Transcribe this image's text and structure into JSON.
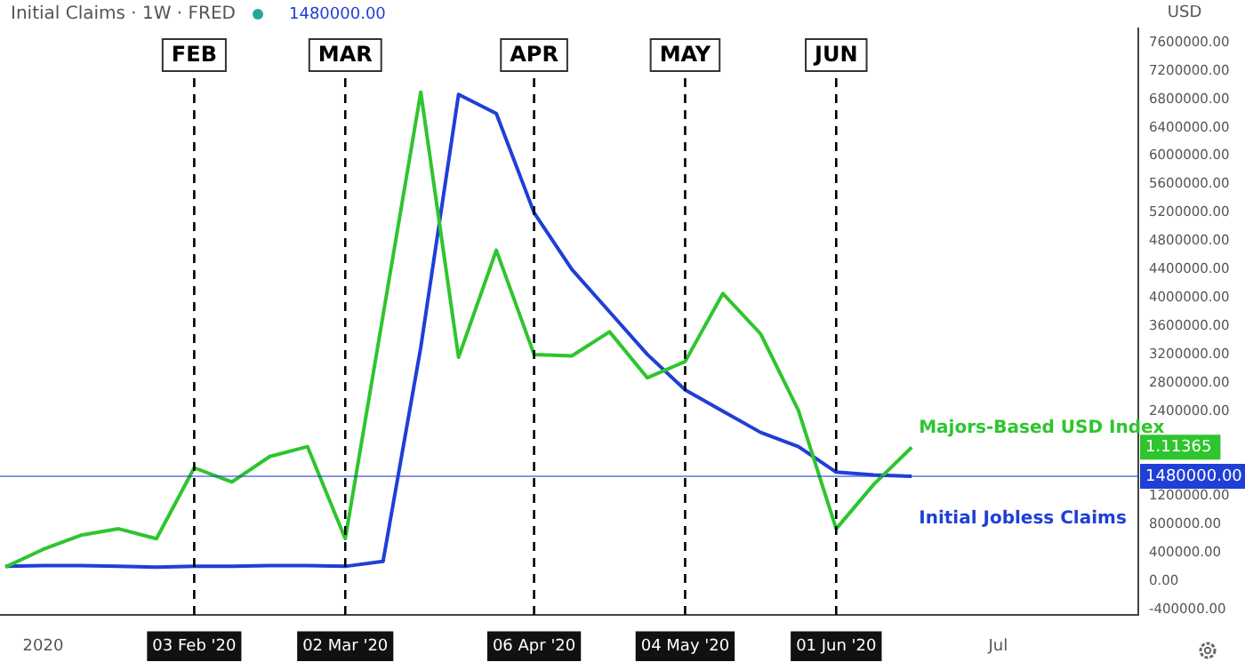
{
  "chart_data": {
    "type": "line",
    "title": "Initial Claims · 1W · FRED",
    "subtitle": "1480000.00",
    "ylabel": "USD",
    "x": [
      "2019-12-30",
      "2020-01-06",
      "2020-01-13",
      "2020-01-20",
      "2020-01-27",
      "2020-02-03",
      "2020-02-10",
      "2020-02-17",
      "2020-02-24",
      "2020-03-02",
      "2020-03-09",
      "2020-03-16",
      "2020-03-23",
      "2020-03-30",
      "2020-04-06",
      "2020-04-13",
      "2020-04-20",
      "2020-04-27",
      "2020-05-04",
      "2020-05-11",
      "2020-05-18",
      "2020-05-25",
      "2020-06-01",
      "2020-06-08",
      "2020-06-15"
    ],
    "series": [
      {
        "name": "Majors-Based USD Index",
        "color": "#2ec52e",
        "values": [
          200000,
          450000,
          650000,
          740000,
          600000,
          1600000,
          1400000,
          1760000,
          1900000,
          600000,
          3750000,
          6900000,
          3160000,
          4670000,
          3200000,
          3180000,
          3520000,
          2870000,
          3100000,
          4060000,
          3490000,
          2410000,
          740000,
          1370000,
          1890000
        ]
      },
      {
        "name": "Initial Jobless Claims",
        "color": "#1f3fd6",
        "values": [
          210000,
          220000,
          220000,
          210000,
          200000,
          210000,
          210000,
          220000,
          220000,
          210000,
          280000,
          3300000,
          6870000,
          6600000,
          5200000,
          4400000,
          3800000,
          3200000,
          2700000,
          2400000,
          2100000,
          1900000,
          1540000,
          1500000,
          1480000
        ]
      }
    ],
    "xlim": [
      "2019-12-29",
      "2020-07-27"
    ],
    "xticks": [
      {
        "value": "2020-01-06",
        "label": "2020"
      },
      {
        "value": "2020-02-03",
        "label": "03 Feb '20"
      },
      {
        "value": "2020-03-02",
        "label": "02 Mar '20"
      },
      {
        "value": "2020-04-06",
        "label": "06 Apr '20"
      },
      {
        "value": "2020-05-04",
        "label": "04 May '20"
      },
      {
        "value": "2020-06-01",
        "label": "01 Jun '20"
      },
      {
        "value": "2020-07-01",
        "label": "Jul"
      }
    ],
    "ylim": [
      -480000,
      7800000
    ],
    "yticks": [
      {
        "value": -400000,
        "label": "-400000.00"
      },
      {
        "value": 0,
        "label": "0.00"
      },
      {
        "value": 400000,
        "label": "400000.00"
      },
      {
        "value": 800000,
        "label": "800000.00"
      },
      {
        "value": 1200000,
        "label": "1200000.00"
      },
      {
        "value": 2400000,
        "label": "2400000.00"
      },
      {
        "value": 2800000,
        "label": "2800000.00"
      },
      {
        "value": 3200000,
        "label": "3200000.00"
      },
      {
        "value": 3600000,
        "label": "3600000.00"
      },
      {
        "value": 4000000,
        "label": "4000000.00"
      },
      {
        "value": 4400000,
        "label": "4400000.00"
      },
      {
        "value": 4800000,
        "label": "4800000.00"
      },
      {
        "value": 5200000,
        "label": "5200000.00"
      },
      {
        "value": 5600000,
        "label": "5600000.00"
      },
      {
        "value": 6000000,
        "label": "6000000.00"
      },
      {
        "value": 6400000,
        "label": "6400000.00"
      },
      {
        "value": 6800000,
        "label": "6800000.00"
      },
      {
        "value": 7200000,
        "label": "7200000.00"
      },
      {
        "value": 7600000,
        "label": "7600000.00"
      }
    ],
    "ref_lines": [
      {
        "axis": "x",
        "value": "2020-02-03",
        "label": "FEB",
        "line_style": "dashed",
        "color": "#000000"
      },
      {
        "axis": "x",
        "value": "2020-03-02",
        "label": "MAR",
        "line_style": "dashed",
        "color": "#000000"
      },
      {
        "axis": "x",
        "value": "2020-04-06",
        "label": "APR",
        "line_style": "dashed",
        "color": "#000000"
      },
      {
        "axis": "x",
        "value": "2020-05-04",
        "label": "MAY",
        "line_style": "dashed",
        "color": "#000000"
      },
      {
        "axis": "x",
        "value": "2020-06-01",
        "label": "JUN",
        "line_style": "dashed",
        "color": "#000000"
      },
      {
        "axis": "y",
        "value": 1480000,
        "label": "1480000.00",
        "color": "#1f3fd6"
      }
    ],
    "annotations": [
      "1.11365"
    ],
    "grid": false,
    "legend": false,
    "marker": "none",
    "line_style": "solid"
  }
}
